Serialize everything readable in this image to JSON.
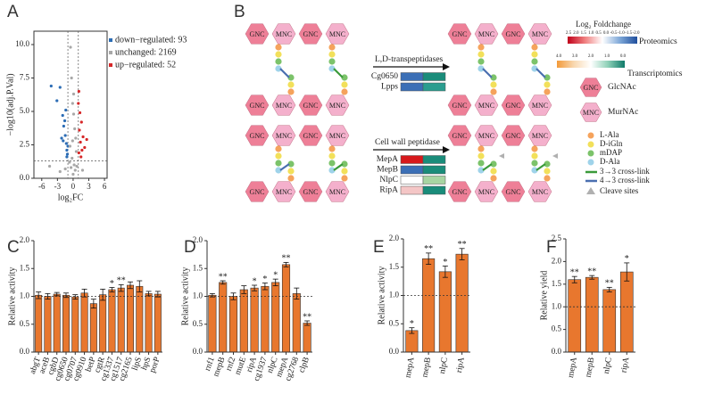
{
  "chart_data": [
    {
      "panel": "A",
      "type": "scatter",
      "xlabel": "log₂FC",
      "ylabel": "−log10(adj.P.Val)",
      "xlim": [
        -7.5,
        6.5
      ],
      "xticks": [
        -6,
        -3,
        0,
        3,
        6
      ],
      "ylim": [
        0,
        11
      ],
      "yticks": [
        {
          "value": 0,
          "label": "0.0"
        },
        2.5,
        {
          "value": 5,
          "label": "5.0"
        },
        7.5,
        {
          "value": 10,
          "label": "10.0"
        }
      ],
      "thresholds": {
        "x": [
          -1,
          1
        ],
        "y": 1.3
      },
      "legend": "right",
      "series": [
        {
          "name": "down−regulated: 93",
          "color": "#2c6db5",
          "x": [
            -4.2,
            -3.1,
            -2.5,
            -2.0,
            -1.8,
            -1.5,
            -1.3,
            -1.2,
            -1.1,
            -1.6,
            -2.2,
            -1.4,
            -1.0,
            -1.9,
            -1.2
          ],
          "y": [
            6.9,
            5.8,
            6.8,
            4.7,
            3.9,
            3.2,
            2.6,
            2.1,
            1.8,
            4.3,
            3.0,
            5.1,
            2.4,
            2.8,
            1.6
          ]
        },
        {
          "name": "unchanged: 2169",
          "color": "#a8a8a8",
          "x": [
            -0.5,
            -0.3,
            -0.1,
            0.1,
            0.3,
            0.5,
            -0.6,
            0.6,
            -0.2,
            0.2,
            -0.4,
            0.4,
            0,
            -0.7,
            0.7,
            -0.1,
            0.1,
            -2.5,
            -4.5,
            -1.5,
            1.8
          ],
          "y": [
            9.8,
            7.5,
            5.6,
            4.8,
            3.7,
            3.0,
            2.4,
            2.0,
            1.5,
            1.0,
            0.8,
            0.6,
            0.3,
            1.2,
            0.9,
            2.8,
            6.3,
            0.5,
            0.9,
            0.7,
            0.6
          ]
        },
        {
          "name": "up−regulated: 52",
          "color": "#d62728",
          "x": [
            1.1,
            1.3,
            1.6,
            1.2,
            1.9,
            1.4,
            2.2,
            1.1,
            1.5,
            1.0,
            2.6,
            1.7
          ],
          "y": [
            6.5,
            4.9,
            4.2,
            3.6,
            3.1,
            2.7,
            2.3,
            1.9,
            1.6,
            5.6,
            2.9,
            2.1
          ]
        }
      ]
    },
    {
      "panel": "C",
      "type": "bar",
      "ylabel": "Relative activity",
      "color": "#e8772e",
      "categories": [
        "abgT",
        "aceB",
        "cgbD",
        "cg0650",
        "cg0707",
        "cg0910",
        "betP",
        "cgtR",
        "cg1337",
        "cg1517",
        "cg2165",
        "lipS",
        "hpS",
        "porP"
      ],
      "values": [
        1.02,
        1.0,
        1.04,
        1.02,
        0.99,
        1.06,
        0.87,
        1.03,
        1.12,
        1.15,
        1.2,
        1.18,
        1.05,
        1.04
      ],
      "errors": [
        0.06,
        0.05,
        0.03,
        0.04,
        0.04,
        0.07,
        0.08,
        0.1,
        0.04,
        0.06,
        0.06,
        0.1,
        0.04,
        0.05
      ],
      "significance": [
        null,
        null,
        null,
        null,
        null,
        null,
        null,
        null,
        "*",
        "**",
        null,
        null,
        null,
        null
      ],
      "ylim": [
        0,
        2
      ],
      "yticks": [
        {
          "value": 0,
          "label": "0.0"
        },
        0.5,
        {
          "value": 1,
          "label": "1.0"
        },
        1.5,
        {
          "value": 2,
          "label": "2.0"
        }
      ],
      "hline": 1
    },
    {
      "panel": "D",
      "type": "bar",
      "ylabel": "Relative activity",
      "color": "#e8772e",
      "categories": [
        "rnf1",
        "mepB",
        "rnf2",
        "mutE",
        "ripA",
        "cg1937",
        "nlpC",
        "mepA",
        "cg2768",
        "clpB"
      ],
      "values": [
        1.02,
        1.25,
        1.0,
        1.12,
        1.15,
        1.18,
        1.25,
        1.57,
        1.05,
        0.52
      ],
      "errors": [
        0.03,
        0.03,
        0.06,
        0.07,
        0.05,
        0.06,
        0.06,
        0.04,
        0.1,
        0.04
      ],
      "significance": [
        null,
        "**",
        null,
        null,
        "*",
        "*",
        "*",
        "**",
        null,
        "**"
      ],
      "ylim": [
        0,
        2
      ],
      "yticks": [
        {
          "value": 0,
          "label": "0.0"
        },
        0.5,
        {
          "value": 1,
          "label": "1.0"
        },
        1.5,
        {
          "value": 2,
          "label": "2.0"
        }
      ],
      "hline": 1
    },
    {
      "panel": "E",
      "type": "bar",
      "ylabel": "Relative activity",
      "color": "#e8772e",
      "categories": [
        "mepA",
        "mepB",
        "nlpC",
        "ripA"
      ],
      "values": [
        0.38,
        1.65,
        1.42,
        1.73
      ],
      "errors": [
        0.05,
        0.1,
        0.1,
        0.1
      ],
      "significance": [
        "*",
        "**",
        "*",
        "**"
      ],
      "ylim": [
        0,
        2
      ],
      "yticks": [
        {
          "value": 0,
          "label": "0.0"
        },
        0.5,
        {
          "value": 1,
          "label": "1.0"
        },
        1.5,
        {
          "value": 2,
          "label": "2.0"
        }
      ],
      "hline": 1
    },
    {
      "panel": "F",
      "type": "bar",
      "ylabel": "Relative yield",
      "color": "#e8772e",
      "categories": [
        "mepA",
        "mepB",
        "nlpC",
        "ripA"
      ],
      "values": [
        1.6,
        1.65,
        1.38,
        1.77
      ],
      "errors": [
        0.07,
        0.04,
        0.05,
        0.2
      ],
      "significance": [
        "**",
        "**",
        "**",
        "*"
      ],
      "ylim": [
        0,
        2.5
      ],
      "yticks": [
        {
          "value": 0,
          "label": "0.0"
        },
        0.5,
        {
          "value": 1,
          "label": "1.0"
        },
        1.5,
        {
          "value": 2,
          "label": "2.0"
        },
        2.5
      ],
      "hline": 1
    }
  ],
  "diagram": {
    "panel": "B",
    "hex_labels": [
      "GNC",
      "MNC"
    ],
    "hex_colors": [
      "#ee7f97",
      "#f4b0cc"
    ],
    "colorbar_title": "Log₂ Foldchange",
    "proteomics": "Proteomics",
    "proteomics_ticks": [
      "2.5",
      "2.0",
      "1.5",
      "1.0",
      "0.5",
      "0.0",
      "-0.5",
      "-1.0",
      "-1.5",
      "-2.0"
    ],
    "transcriptomics": "Transcriptomics",
    "transcriptomics_ticks": [
      "4.0",
      "3.0",
      "2.0",
      "1.0",
      "0.0"
    ],
    "groups": [
      {
        "title": "L,D-transpeptidases",
        "genes": [
          {
            "name": "Cg0650",
            "colors": [
              "#3b6fb6",
              "#1a8c7a"
            ]
          },
          {
            "name": "Lpps",
            "colors": [
              "#3b6fb6",
              "#2a9d8f"
            ]
          }
        ]
      },
      {
        "title": "Cell wall peptidase",
        "genes": [
          {
            "name": "MepA",
            "colors": [
              "#d7191c",
              "#1a8c7a"
            ]
          },
          {
            "name": "MepB",
            "colors": [
              "#3b6fb6",
              "#1a8c7a"
            ]
          },
          {
            "name": "NlpC",
            "colors": [
              "#ffffff",
              "#a8d5a2"
            ]
          },
          {
            "name": "RipA",
            "colors": [
              "#f4c6c6",
              "#1a8c7a"
            ]
          }
        ]
      }
    ],
    "sugars": [
      "GlcNAc",
      "MurNAc"
    ],
    "residues": [
      {
        "name": "L-Ala",
        "color": "#f5a35c"
      },
      {
        "name": "D-iGln",
        "color": "#f2e05a"
      },
      {
        "name": "mDAP",
        "color": "#7cc36a"
      },
      {
        "name": "D-Ala",
        "color": "#9fd3ea"
      }
    ],
    "crosslinks": [
      {
        "name": "3→3 cross-link",
        "color": "#3a9a3a"
      },
      {
        "name": "4→3 cross-link",
        "color": "#4a6fb0"
      }
    ],
    "cleave": {
      "name": "Cleave sites",
      "color": "#b0b0b0"
    }
  }
}
